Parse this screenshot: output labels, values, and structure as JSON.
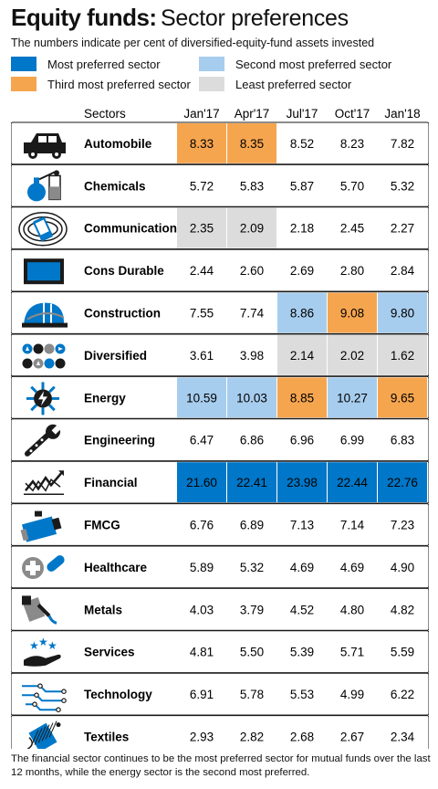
{
  "header": {
    "title_bold": "Equity funds:",
    "title_rest": "Sector preferences",
    "subtitle": "The numbers indicate per cent of diversified-equity-fund assets invested"
  },
  "legend": [
    {
      "label": "Most preferred sector",
      "color": "#0077c8"
    },
    {
      "label": "Second most preferred sector",
      "color": "#a7cdee"
    },
    {
      "label": "Third most preferred sector",
      "color": "#f6a54f"
    },
    {
      "label": "Least preferred sector",
      "color": "#dcdcdc"
    }
  ],
  "footnote": "The financial sector continues to be the most preferred sector for mutual funds over the last 12 months, while the energy sector is the second most preferred.",
  "chart_data": {
    "type": "table",
    "sectors_header": "Sectors",
    "columns": [
      "Jan'17",
      "Apr'17",
      "Jul'17",
      "Oct'17",
      "Jan'18"
    ],
    "rows": [
      {
        "sector": "Automobile",
        "icon": "car-icon",
        "values": [
          "8.33",
          "8.35",
          "8.52",
          "8.23",
          "7.82"
        ],
        "ranks": [
          3,
          3,
          0,
          0,
          0
        ]
      },
      {
        "sector": "Chemicals",
        "icon": "flask-icon",
        "values": [
          "5.72",
          "5.83",
          "5.87",
          "5.70",
          "5.32"
        ],
        "ranks": [
          0,
          0,
          0,
          0,
          0
        ]
      },
      {
        "sector": "Communication",
        "icon": "phone-signal-icon",
        "values": [
          "2.35",
          "2.09",
          "2.18",
          "2.45",
          "2.27"
        ],
        "ranks": [
          4,
          4,
          0,
          0,
          0
        ]
      },
      {
        "sector": "Cons Durable",
        "icon": "tv-icon",
        "values": [
          "2.44",
          "2.60",
          "2.69",
          "2.80",
          "2.84"
        ],
        "ranks": [
          0,
          0,
          0,
          0,
          0
        ]
      },
      {
        "sector": "Construction",
        "icon": "hard-hat-icon",
        "values": [
          "7.55",
          "7.74",
          "8.86",
          "9.08",
          "9.80"
        ],
        "ranks": [
          0,
          0,
          2,
          3,
          2
        ]
      },
      {
        "sector": "Diversified",
        "icon": "shapes-icon",
        "values": [
          "3.61",
          "3.98",
          "2.14",
          "2.02",
          "1.62"
        ],
        "ranks": [
          0,
          0,
          4,
          4,
          4
        ]
      },
      {
        "sector": "Energy",
        "icon": "lightning-sun-icon",
        "values": [
          "10.59",
          "10.03",
          "8.85",
          "10.27",
          "9.65"
        ],
        "ranks": [
          2,
          2,
          3,
          2,
          3
        ]
      },
      {
        "sector": "Engineering",
        "icon": "wrench-icon",
        "values": [
          "6.47",
          "6.86",
          "6.96",
          "6.99",
          "6.83"
        ],
        "ranks": [
          0,
          0,
          0,
          0,
          0
        ]
      },
      {
        "sector": "Financial",
        "icon": "trend-chart-icon",
        "values": [
          "21.60",
          "22.41",
          "23.98",
          "22.44",
          "22.76"
        ],
        "ranks": [
          1,
          1,
          1,
          1,
          1
        ]
      },
      {
        "sector": "FMCG",
        "icon": "tube-icon",
        "values": [
          "6.76",
          "6.89",
          "7.13",
          "7.14",
          "7.23"
        ],
        "ranks": [
          0,
          0,
          0,
          0,
          0
        ]
      },
      {
        "sector": "Healthcare",
        "icon": "medical-cross-pill-icon",
        "values": [
          "5.89",
          "5.32",
          "4.69",
          "4.69",
          "4.90"
        ],
        "ranks": [
          0,
          0,
          0,
          0,
          0
        ]
      },
      {
        "sector": "Metals",
        "icon": "metal-pour-icon",
        "values": [
          "4.03",
          "3.79",
          "4.52",
          "4.80",
          "4.82"
        ],
        "ranks": [
          0,
          0,
          0,
          0,
          0
        ]
      },
      {
        "sector": "Services",
        "icon": "hand-stars-icon",
        "values": [
          "4.81",
          "5.50",
          "5.39",
          "5.71",
          "5.59"
        ],
        "ranks": [
          0,
          0,
          0,
          0,
          0
        ]
      },
      {
        "sector": "Technology",
        "icon": "circuit-icon",
        "values": [
          "6.91",
          "5.78",
          "5.53",
          "4.99",
          "6.22"
        ],
        "ranks": [
          0,
          0,
          0,
          0,
          0
        ]
      },
      {
        "sector": "Textiles",
        "icon": "thread-spool-icon",
        "values": [
          "2.93",
          "2.82",
          "2.68",
          "2.67",
          "2.34"
        ],
        "ranks": [
          0,
          0,
          0,
          0,
          0
        ]
      }
    ]
  }
}
